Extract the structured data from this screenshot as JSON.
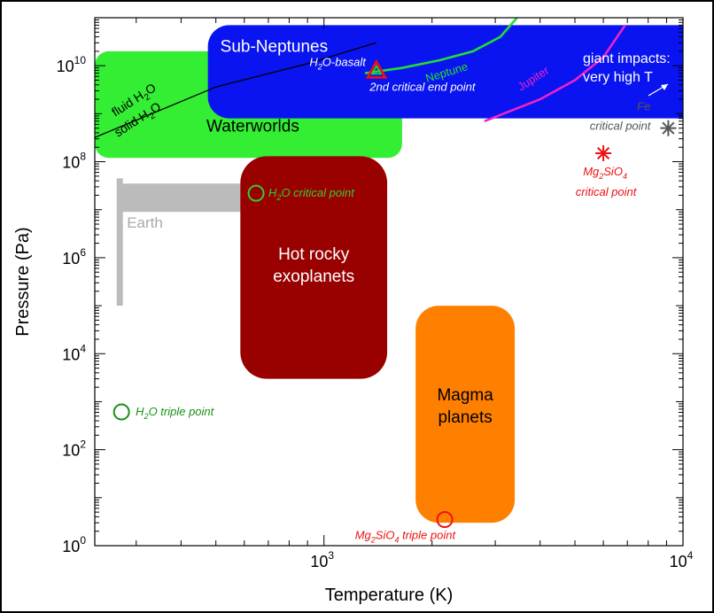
{
  "chart_data": {
    "type": "region-map",
    "xlabel": "Temperature (K)",
    "ylabel": "Pressure (Pa)",
    "x_scale": "log",
    "y_scale": "log",
    "xlim": [
      230,
      10000
    ],
    "ylim": [
      1,
      100000000000
    ],
    "xticks": [
      {
        "value": 1000,
        "base": "10",
        "exp": "3"
      },
      {
        "value": 10000,
        "base": "10",
        "exp": "4"
      }
    ],
    "yticks": [
      {
        "value": 1,
        "base": "10",
        "exp": "0"
      },
      {
        "value": 100,
        "base": "10",
        "exp": "2"
      },
      {
        "value": 10000,
        "base": "10",
        "exp": "4"
      },
      {
        "value": 1000000,
        "base": "10",
        "exp": "6"
      },
      {
        "value": 100000000,
        "base": "10",
        "exp": "8"
      },
      {
        "value": 10000000000,
        "base": "10",
        "exp": "10"
      }
    ],
    "regions": [
      {
        "id": "subneptunes",
        "label": "Sub-Neptunes",
        "color": "#0a14f0",
        "x": [
          475,
          10000
        ],
        "y": [
          800000000,
          70000000000
        ]
      },
      {
        "id": "waterworlds",
        "label": "Waterworlds",
        "color": "#33ee33",
        "x": [
          230,
          1650
        ],
        "y": [
          120000000,
          20000000000
        ]
      },
      {
        "id": "hotrocky",
        "label": [
          "Hot rocky",
          "exoplanets"
        ],
        "color": "#990000",
        "x": [
          585,
          1500
        ],
        "y": [
          3000,
          130000000
        ]
      },
      {
        "id": "magma",
        "label": [
          "Magma",
          "planets"
        ],
        "color": "#ff8000",
        "x": [
          1800,
          3400
        ],
        "y": [
          3,
          100000
        ]
      }
    ],
    "earth": {
      "label": "Earth",
      "color": "#bbbbbb",
      "vbar": {
        "x": 270,
        "y": [
          100000,
          45000000
        ]
      },
      "hbar": {
        "x": [
          270,
          650
        ],
        "y": [
          9000000,
          35000000
        ]
      }
    },
    "points": [
      {
        "id": "h2o-triple",
        "label": "O triple point",
        "prefix": "H",
        "sub": "2",
        "x": 273,
        "y": 611,
        "marker": "circle",
        "color": "#1a8f1a"
      },
      {
        "id": "h2o-critical",
        "label": "O critical point",
        "prefix": "H",
        "sub": "2",
        "x": 647,
        "y": 22000000,
        "marker": "circle",
        "color": "#33cc33"
      },
      {
        "id": "mg2sio4-triple",
        "label": "SiO",
        "prefix": "Mg",
        "sub": "2",
        "sub2": "4",
        "suffix": " triple point",
        "x": 2170,
        "y": 3.5,
        "marker": "circle",
        "color": "#ee1111"
      },
      {
        "id": "h2o-basalt",
        "label": "O-basalt",
        "prefix": "H",
        "sub": "2",
        "line2": "2nd critical end point",
        "x": 1400,
        "y": 8000000000,
        "marker": "triangle",
        "color": "#ee1111"
      },
      {
        "id": "fe-critical",
        "label": [
          "Fe",
          "critical point"
        ],
        "x": 9100,
        "y": 500000000,
        "marker": "asterisk",
        "color": "#555555"
      },
      {
        "id": "mg2sio4-critical",
        "label": "SiO",
        "prefix": "Mg",
        "sub": "2",
        "sub2": "4",
        "line2": "critical point",
        "x": 6000,
        "y": 150000000,
        "marker": "asterisk",
        "color": "#ee1111"
      }
    ],
    "curves": [
      {
        "id": "neptune",
        "label": "Neptune",
        "color": "#22dd33",
        "points": [
          [
            1300,
            7000000000
          ],
          [
            1650,
            9000000000
          ],
          [
            2100,
            13000000000
          ],
          [
            2600,
            20000000000
          ],
          [
            3100,
            40000000000
          ],
          [
            3450,
            100000000000
          ]
        ]
      },
      {
        "id": "jupiter",
        "label": "Jupiter",
        "color": "#ee22cc",
        "points": [
          [
            2800,
            700000000
          ],
          [
            4000,
            2000000000
          ],
          [
            5000,
            5000000000
          ],
          [
            6000,
            15000000000
          ],
          [
            6900,
            70000000000
          ]
        ]
      },
      {
        "id": "h2o-phase",
        "color": "#000000",
        "points": [
          [
            230,
            320000000
          ],
          [
            500,
            3600000000
          ],
          [
            900,
            11000000000
          ],
          [
            1400,
            30000000000
          ]
        ]
      }
    ],
    "annotations": {
      "fluid": "fluid H",
      "solid": "solid H",
      "water_sub": "2",
      "water_o": "O",
      "impacts_line1": "giant impacts:",
      "impacts_line2": "very high T"
    },
    "grid": false,
    "legend": "none"
  }
}
